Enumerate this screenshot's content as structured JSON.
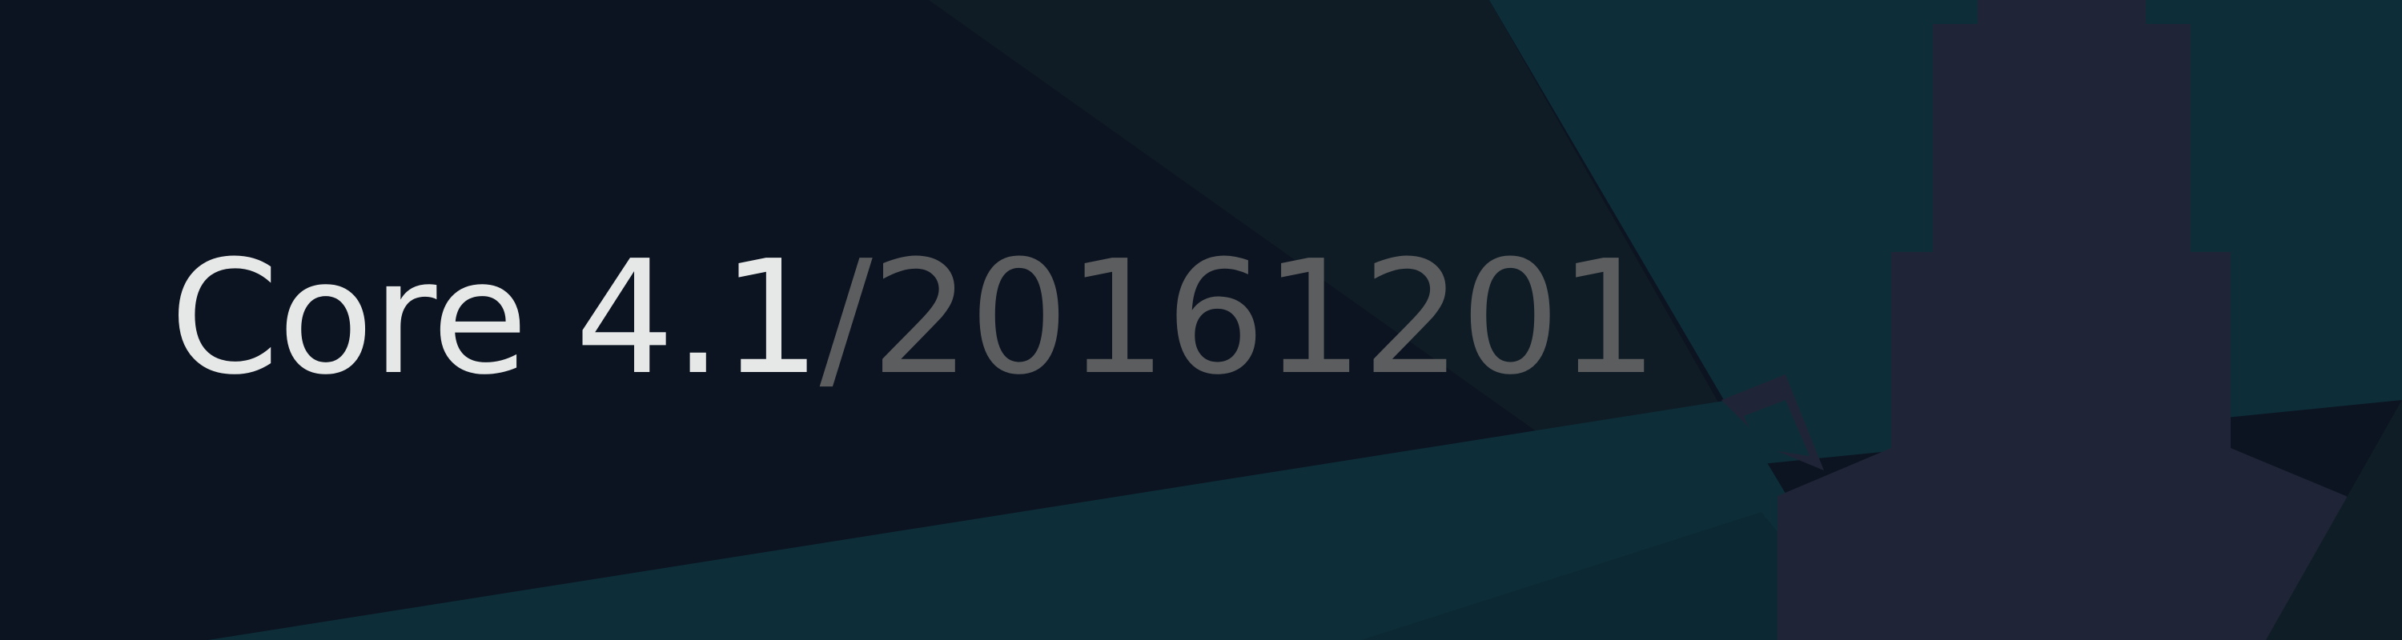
{
  "title": {
    "product": "Core",
    "version": "4.1",
    "separator": "/",
    "build": "20161201"
  },
  "colors": {
    "background": "#0d1421",
    "teal": "#0d2e38",
    "teal_dark": "#0f1e26",
    "lighthouse": "#1f2536",
    "title_primary": "#e6e8e7",
    "title_secondary": "#5c5d5f"
  },
  "decorations": {
    "lighthouse": "lighthouse-silhouette",
    "beams": "light-beams"
  }
}
